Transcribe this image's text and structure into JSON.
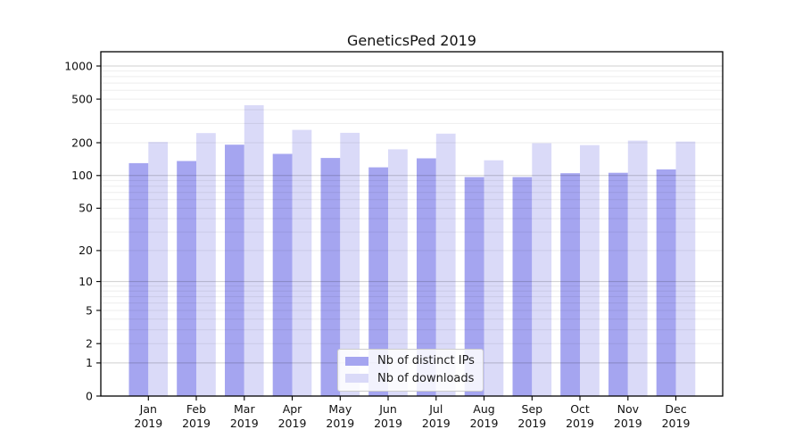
{
  "chart_data": {
    "type": "bar",
    "title": "GeneticsPed 2019",
    "categories": [
      "Jan",
      "Feb",
      "Mar",
      "Apr",
      "May",
      "Jun",
      "Jul",
      "Aug",
      "Sep",
      "Oct",
      "Nov",
      "Dec"
    ],
    "x_year_label": "2019",
    "series": [
      {
        "name": "Nb of distinct IPs",
        "color": "#a5a5f0",
        "values": [
          130,
          136,
          192,
          158,
          145,
          119,
          144,
          97,
          97,
          105,
          106,
          114
        ]
      },
      {
        "name": "Nb of downloads",
        "color": "#dadaf8",
        "values": [
          203,
          245,
          440,
          262,
          246,
          174,
          242,
          138,
          198,
          190,
          209,
          205
        ]
      }
    ],
    "y_axis": {
      "ticks": [
        0,
        1,
        2,
        5,
        10,
        20,
        50,
        100,
        200,
        500,
        1000
      ],
      "scale": "log10(value+1)",
      "top_value": 1000
    },
    "grid": {
      "minor": true,
      "major_decades": [
        1,
        10,
        100,
        1000
      ]
    },
    "legend_position": "lower-center-inside",
    "axis_color": "#000000",
    "text_color": "#111111"
  }
}
